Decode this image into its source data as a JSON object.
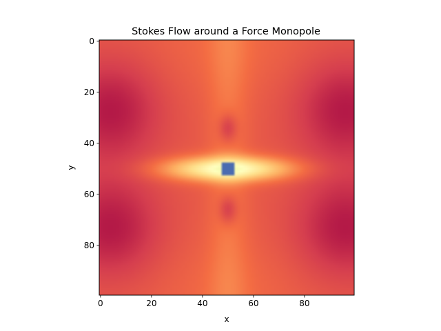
{
  "chart_data": {
    "type": "heatmap",
    "title": "Stokes Flow around a Force Monopole",
    "xlabel": "x",
    "ylabel": "y",
    "grid_size": [
      100,
      100
    ],
    "xlim": [
      -0.5,
      99.5
    ],
    "ylim": [
      99.5,
      -0.5
    ],
    "y_inverted": true,
    "xticks": [
      0,
      20,
      40,
      60,
      80
    ],
    "yticks": [
      0,
      20,
      40,
      60,
      80
    ],
    "colormap": "Spectral",
    "colormap_stops": [
      "#9e0142",
      "#d53e4f",
      "#f46d43",
      "#fdae61",
      "#fee08b",
      "#ffffbf",
      "#e6f598",
      "#abdda4",
      "#66c2a5",
      "#3288bd",
      "#5e4fa2"
    ],
    "force_location": [
      50,
      50
    ],
    "grid": false,
    "legend": "none"
  }
}
